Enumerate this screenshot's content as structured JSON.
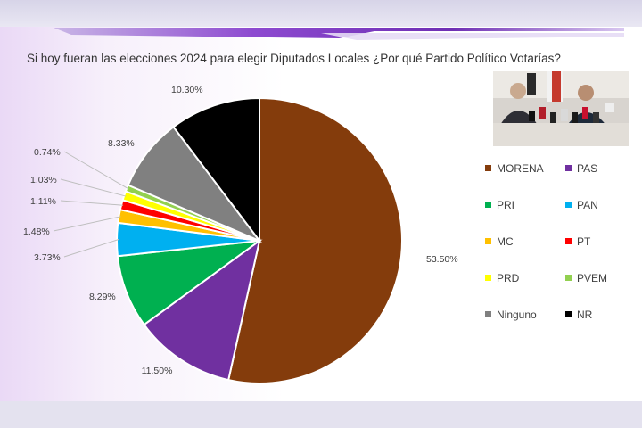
{
  "chart_data": {
    "type": "pie",
    "title": "Si hoy fueran las elecciones 2024 para elegir Diputados Locales ¿Por qué  Partido Político Votarías?",
    "slices": [
      {
        "name": "MORENA",
        "value": 53.5,
        "label": "53.50%",
        "color": "#843c0c"
      },
      {
        "name": "PAS",
        "value": 11.5,
        "label": "11.50%",
        "color": "#7030a0"
      },
      {
        "name": "PRI",
        "value": 8.29,
        "label": "8.29%",
        "color": "#00b050"
      },
      {
        "name": "PAN",
        "value": 3.73,
        "label": "3.73%",
        "color": "#00b0f0"
      },
      {
        "name": "MC",
        "value": 1.48,
        "label": "1.48%",
        "color": "#ffc000"
      },
      {
        "name": "PT",
        "value": 1.11,
        "label": "1.11%",
        "color": "#ff0000"
      },
      {
        "name": "PRD",
        "value": 1.03,
        "label": "1.03%",
        "color": "#ffff00"
      },
      {
        "name": "PVEM",
        "value": 0.74,
        "label": "0.74%",
        "color": "#92d050"
      },
      {
        "name": "Ninguno",
        "value": 8.33,
        "label": "8.33%",
        "color": "#808080"
      },
      {
        "name": "NR",
        "value": 10.3,
        "label": "10.30%",
        "color": "#000000"
      }
    ],
    "legend_position": "right"
  },
  "photo": {
    "icon": "press-conference-photo"
  }
}
